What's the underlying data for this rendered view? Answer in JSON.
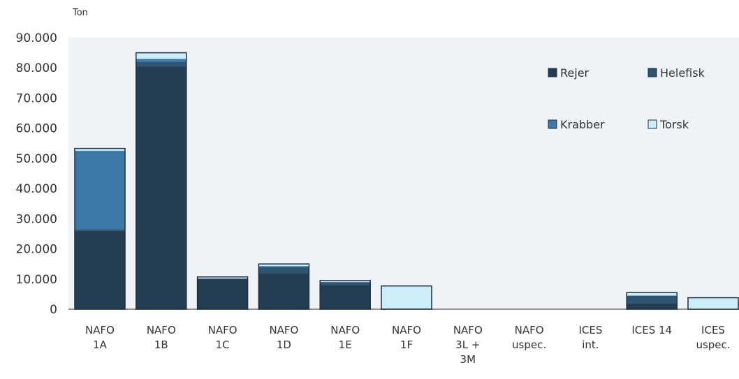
{
  "chart_data": {
    "type": "bar",
    "stacked": true,
    "y_unit_label": "Ton",
    "ylim": [
      0,
      90000
    ],
    "y_ticks": [
      "0",
      "10.000",
      "20.000",
      "30.000",
      "40.000",
      "50.000",
      "60.000",
      "70.000",
      "80.000",
      "90.000"
    ],
    "y_tick_values": [
      0,
      10000,
      20000,
      30000,
      40000,
      50000,
      60000,
      70000,
      80000,
      90000
    ],
    "categories": [
      [
        "NAFO",
        "1A"
      ],
      [
        "NAFO",
        "1B"
      ],
      [
        "NAFO",
        "1C"
      ],
      [
        "NAFO",
        "1D"
      ],
      [
        "NAFO",
        "1E"
      ],
      [
        "NAFO",
        "1F"
      ],
      [
        "NAFO",
        "3L +",
        "3M"
      ],
      [
        "NAFO",
        "uspec."
      ],
      [
        "ICES",
        "int."
      ],
      [
        "ICES 14"
      ],
      [
        "ICES",
        "uspec."
      ]
    ],
    "series": [
      {
        "name": "Rejer",
        "color": "#243d52",
        "values": [
          26000,
          80500,
          10000,
          12000,
          8000,
          200,
          0,
          0,
          0,
          2000,
          0
        ]
      },
      {
        "name": "Helefisk",
        "color": "#2e5673",
        "values": [
          500,
          1500,
          200,
          2000,
          1000,
          0,
          0,
          0,
          0,
          2500,
          0
        ]
      },
      {
        "name": "Krabber",
        "color": "#3d79a6",
        "values": [
          26000,
          1000,
          0,
          300,
          0,
          0,
          0,
          0,
          0,
          0,
          0
        ]
      },
      {
        "name": "Torsk",
        "color": "#cdeef8",
        "values": [
          800,
          2000,
          500,
          700,
          500,
          7500,
          0,
          0,
          0,
          1000,
          3800
        ]
      }
    ],
    "legend": {
      "position": "top-right"
    },
    "grid": false,
    "plot_background": "#eef3f8"
  }
}
